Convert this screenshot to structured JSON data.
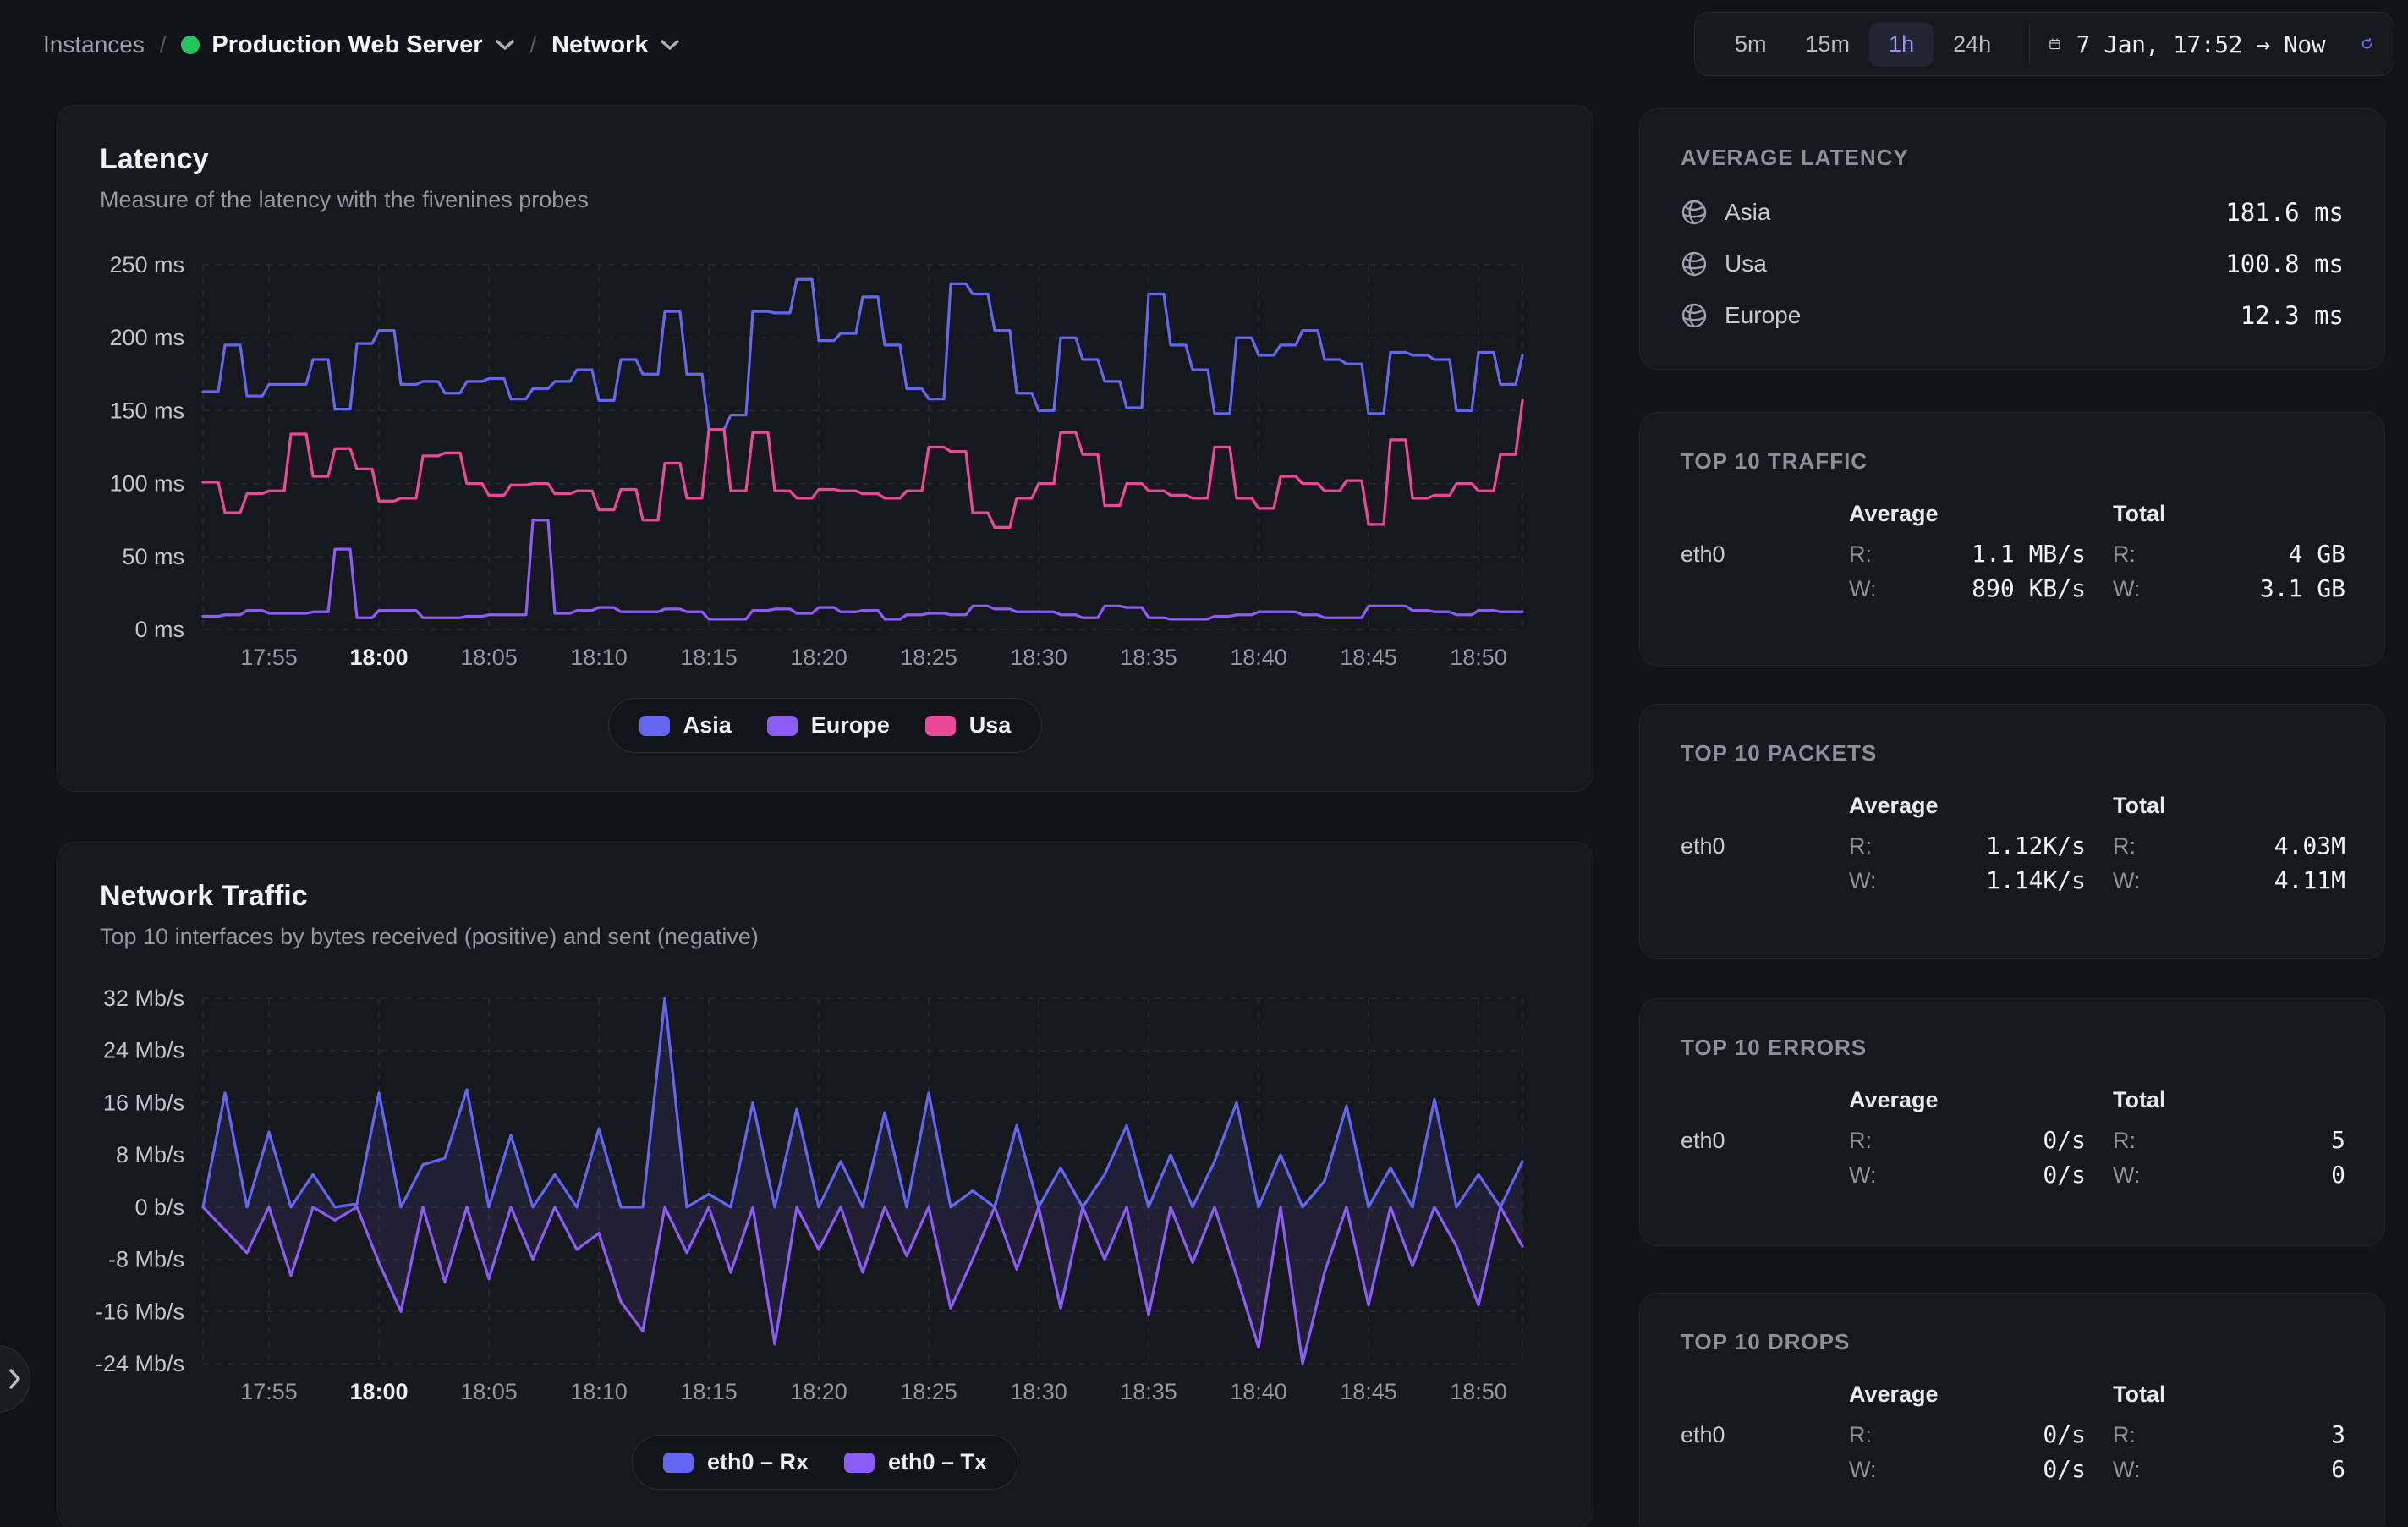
{
  "breadcrumb": {
    "root": "Instances",
    "separator": "/",
    "instance": "Production Web Server",
    "section": "Network"
  },
  "timebar": {
    "ranges": [
      "5m",
      "15m",
      "1h",
      "24h"
    ],
    "active": "1h",
    "date_range": "7 Jan, 17:52 → Now"
  },
  "labels": {
    "read": "R:",
    "write": "W:"
  },
  "colors": {
    "accent": "#6366f1",
    "status_green": "#22c55e",
    "asia": "#6366f1",
    "europe": "#8b5cf6",
    "usa": "#ec4899"
  },
  "latency_card": {
    "title": "Latency",
    "subtitle": "Measure of the latency with the fivenines probes"
  },
  "traffic_card": {
    "title": "Network Traffic",
    "subtitle": "Top 10 interfaces by bytes received (positive) and sent (negative)"
  },
  "sidebar": {
    "average_latency": {
      "title": "AVERAGE LATENCY",
      "rows": [
        {
          "label": "Asia",
          "value": "181.6 ms"
        },
        {
          "label": "Usa",
          "value": "100.8 ms"
        },
        {
          "label": "Europe",
          "value": "12.3 ms"
        }
      ]
    },
    "stat_cards": [
      {
        "title": "TOP 10 TRAFFIC",
        "avg_header": "Average",
        "total_header": "Total",
        "rows": [
          {
            "iface": "eth0",
            "avg_r": "1.1 MB/s",
            "avg_w": "890 KB/s",
            "total_r": "4 GB",
            "total_w": "3.1 GB"
          }
        ]
      },
      {
        "title": "TOP 10 PACKETS",
        "avg_header": "Average",
        "total_header": "Total",
        "rows": [
          {
            "iface": "eth0",
            "avg_r": "1.12K/s",
            "avg_w": "1.14K/s",
            "total_r": "4.03M",
            "total_w": "4.11M"
          }
        ]
      },
      {
        "title": "TOP 10 ERRORS",
        "avg_header": "Average",
        "total_header": "Total",
        "rows": [
          {
            "iface": "eth0",
            "avg_r": "0/s",
            "avg_w": "0/s",
            "total_r": "5",
            "total_w": "0"
          }
        ]
      },
      {
        "title": "TOP 10 DROPS",
        "avg_header": "Average",
        "total_header": "Total",
        "rows": [
          {
            "iface": "eth0",
            "avg_r": "0/s",
            "avg_w": "0/s",
            "total_r": "3",
            "total_w": "6"
          }
        ]
      }
    ]
  },
  "chart_data": [
    {
      "type": "line",
      "title": "Latency",
      "interpolation": "step",
      "unit": "ms",
      "x_range": [
        "17:52",
        "18:52"
      ],
      "point_interval_minutes": 1,
      "grid": true,
      "legend_position": "bottom",
      "ylim": [
        0,
        250
      ],
      "x_ticks": [
        {
          "label": "17:55",
          "min": 3
        },
        {
          "label": "18:00",
          "min": 8,
          "bold": true
        },
        {
          "label": "18:05",
          "min": 13
        },
        {
          "label": "18:10",
          "min": 18
        },
        {
          "label": "18:15",
          "min": 23
        },
        {
          "label": "18:20",
          "min": 28
        },
        {
          "label": "18:25",
          "min": 33
        },
        {
          "label": "18:30",
          "min": 38
        },
        {
          "label": "18:35",
          "min": 43
        },
        {
          "label": "18:40",
          "min": 48
        },
        {
          "label": "18:45",
          "min": 53
        },
        {
          "label": "18:50",
          "min": 58
        }
      ],
      "y_ticks": [
        {
          "label": "250 ms",
          "value": 250
        },
        {
          "label": "200 ms",
          "value": 200
        },
        {
          "label": "150 ms",
          "value": 150
        },
        {
          "label": "100 ms",
          "value": 100
        },
        {
          "label": "50 ms",
          "value": 50
        },
        {
          "label": "0 ms",
          "value": 0
        }
      ],
      "series": [
        {
          "name": "Asia",
          "color": "#6366f1",
          "average_ms": 181.6,
          "values": [
            163,
            195,
            160,
            168,
            168,
            185,
            151,
            196,
            205,
            168,
            170,
            162,
            170,
            172,
            158,
            165,
            170,
            178,
            157,
            185,
            175,
            218,
            175,
            137,
            147,
            218,
            217,
            240,
            198,
            203,
            228,
            195,
            165,
            158,
            237,
            230,
            205,
            162,
            150,
            200,
            185,
            170,
            152,
            230,
            195,
            178,
            148,
            200,
            188,
            195,
            205,
            185,
            182,
            148,
            190,
            188,
            185,
            150,
            190,
            168,
            188
          ]
        },
        {
          "name": "Europe",
          "color": "#8b5cf6",
          "average_ms": 12.3,
          "values": [
            9,
            10,
            13,
            11,
            11,
            12,
            55,
            8,
            13,
            13,
            8,
            8,
            9,
            10,
            10,
            75,
            11,
            13,
            15,
            12,
            12,
            14,
            12,
            7,
            7,
            13,
            14,
            11,
            15,
            12,
            13,
            7,
            10,
            11,
            10,
            16,
            14,
            12,
            12,
            10,
            8,
            16,
            15,
            8,
            7,
            7,
            9,
            10,
            12,
            12,
            10,
            8,
            8,
            16,
            16,
            13,
            12,
            10,
            13,
            12,
            12
          ]
        },
        {
          "name": "Usa",
          "color": "#ec4899",
          "average_ms": 100.8,
          "values": [
            101,
            80,
            93,
            95,
            134,
            105,
            124,
            110,
            88,
            90,
            119,
            121,
            100,
            92,
            99,
            100,
            93,
            95,
            82,
            96,
            75,
            114,
            90,
            137,
            95,
            135,
            95,
            90,
            96,
            95,
            93,
            90,
            95,
            125,
            122,
            80,
            70,
            90,
            100,
            135,
            120,
            85,
            100,
            95,
            92,
            90,
            125,
            90,
            83,
            105,
            100,
            95,
            102,
            72,
            130,
            90,
            92,
            100,
            95,
            120,
            157
          ]
        }
      ]
    },
    {
      "type": "line",
      "title": "Network Traffic",
      "interpolation": "linear",
      "fill_to_zero": true,
      "unit": "Mb/s",
      "x_range": [
        "17:52",
        "18:52"
      ],
      "point_interval_minutes": 1,
      "grid": true,
      "legend_position": "bottom",
      "ylim": [
        -24,
        32
      ],
      "x_ticks": [
        {
          "label": "17:55",
          "min": 3
        },
        {
          "label": "18:00",
          "min": 8,
          "bold": true
        },
        {
          "label": "18:05",
          "min": 13
        },
        {
          "label": "18:10",
          "min": 18
        },
        {
          "label": "18:15",
          "min": 23
        },
        {
          "label": "18:20",
          "min": 28
        },
        {
          "label": "18:25",
          "min": 33
        },
        {
          "label": "18:30",
          "min": 38
        },
        {
          "label": "18:35",
          "min": 43
        },
        {
          "label": "18:40",
          "min": 48
        },
        {
          "label": "18:45",
          "min": 53
        },
        {
          "label": "18:50",
          "min": 58
        }
      ],
      "y_ticks": [
        {
          "label": "32 Mb/s",
          "value": 32
        },
        {
          "label": "24 Mb/s",
          "value": 24
        },
        {
          "label": "16 Mb/s",
          "value": 16
        },
        {
          "label": "8 Mb/s",
          "value": 8
        },
        {
          "label": "0 b/s",
          "value": 0
        },
        {
          "label": "-8 Mb/s",
          "value": -8
        },
        {
          "label": "-16 Mb/s",
          "value": -16
        },
        {
          "label": "-24 Mb/s",
          "value": -24
        }
      ],
      "series": [
        {
          "name": "eth0 – Rx",
          "color": "#6366f1",
          "values": [
            0,
            17.5,
            0,
            11.5,
            0,
            5,
            0,
            0.5,
            17.5,
            0,
            6.5,
            7.5,
            18,
            0,
            11,
            0,
            5,
            0,
            12,
            0,
            0,
            32,
            0,
            2,
            0,
            16,
            0,
            15,
            0,
            7,
            0,
            14.5,
            0,
            17.5,
            0,
            2.5,
            0,
            12.5,
            0,
            6,
            0,
            5,
            12.5,
            0,
            8,
            0,
            7,
            16,
            0,
            8,
            0,
            4,
            15.5,
            0,
            6,
            0,
            16.5,
            0,
            5,
            0,
            7
          ]
        },
        {
          "name": "eth0 – Tx",
          "color": "#8b5cf6",
          "values": [
            0,
            -3.5,
            -7,
            0,
            -10.5,
            0,
            -2,
            0,
            -8.5,
            -16,
            0,
            -11.5,
            0,
            -11,
            0,
            -8,
            0,
            -6.5,
            -4,
            -14.5,
            -19,
            0,
            -7,
            0,
            -10,
            0,
            -21,
            0,
            -6.5,
            0,
            -10,
            0,
            -7.5,
            0,
            -15.5,
            -8,
            0,
            -9.5,
            0,
            -15.5,
            0,
            -8,
            0,
            -16.5,
            0,
            -8.5,
            0,
            -10.5,
            -21.5,
            0,
            -24,
            -10,
            0,
            -15,
            0,
            -9,
            0,
            -6,
            -15,
            0,
            -6
          ]
        }
      ]
    }
  ]
}
